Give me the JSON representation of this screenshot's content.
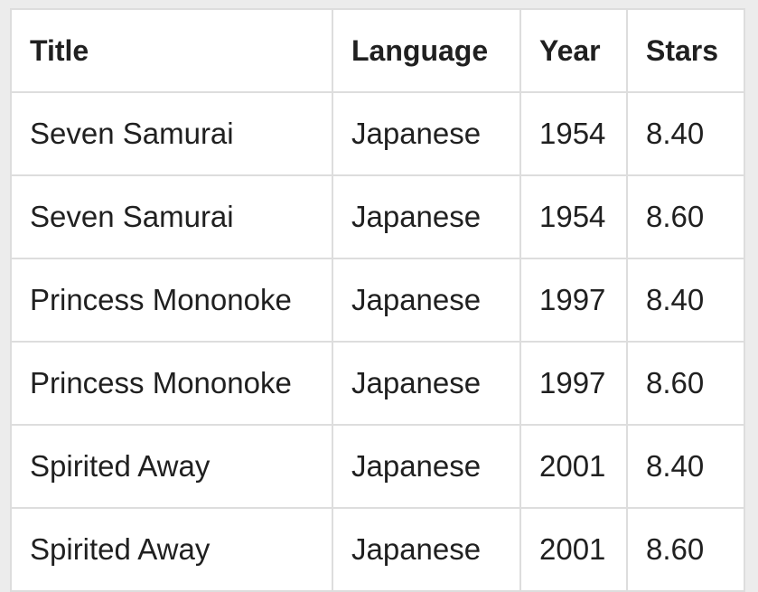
{
  "table": {
    "headers": [
      "Title",
      "Language",
      "Year",
      "Stars"
    ],
    "rows": [
      [
        "Seven Samurai",
        "Japanese",
        "1954",
        "8.40"
      ],
      [
        "Seven Samurai",
        "Japanese",
        "1954",
        "8.60"
      ],
      [
        "Princess Mononoke",
        "Japanese",
        "1997",
        "8.40"
      ],
      [
        "Princess Mononoke",
        "Japanese",
        "1997",
        "8.60"
      ],
      [
        "Spirited Away",
        "Japanese",
        "2001",
        "8.40"
      ],
      [
        "Spirited Away",
        "Japanese",
        "2001",
        "8.60"
      ]
    ]
  }
}
